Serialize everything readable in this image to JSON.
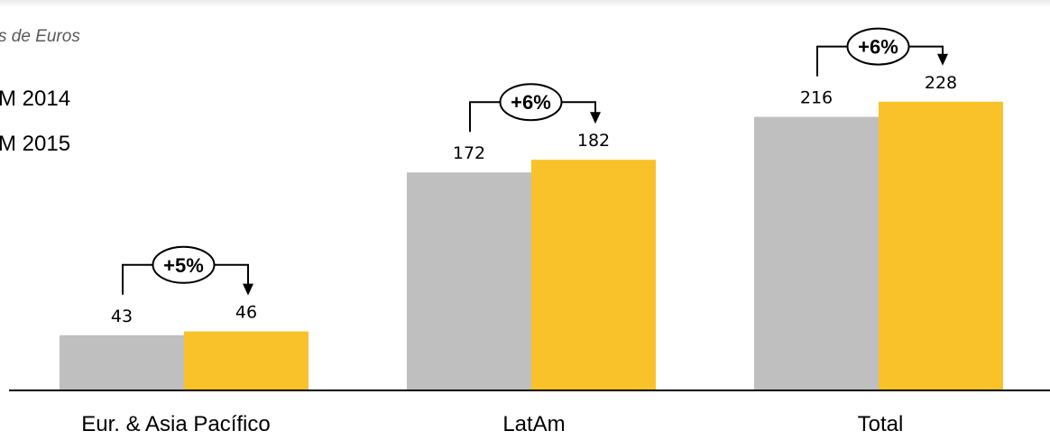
{
  "unit_label": "s de Euros",
  "legend": [
    {
      "label": "M 2014",
      "color": "#bfbfbf"
    },
    {
      "label": "M 2015",
      "color": "#f9c22a"
    }
  ],
  "chart_data": {
    "type": "bar",
    "categories": [
      "Eur. & Asia Pacífico",
      "LatAm",
      "Total"
    ],
    "series": [
      {
        "name": "M 2014",
        "values": [
          43,
          172,
          216
        ],
        "color": "#bfbfbf"
      },
      {
        "name": "M 2015",
        "values": [
          46,
          182,
          228
        ],
        "color": "#f9c22a"
      }
    ],
    "growth_labels": [
      "+5%",
      "+6%",
      "+6%"
    ],
    "ylim": [
      0,
      270
    ],
    "grid": false,
    "legend_position": "top-left"
  }
}
